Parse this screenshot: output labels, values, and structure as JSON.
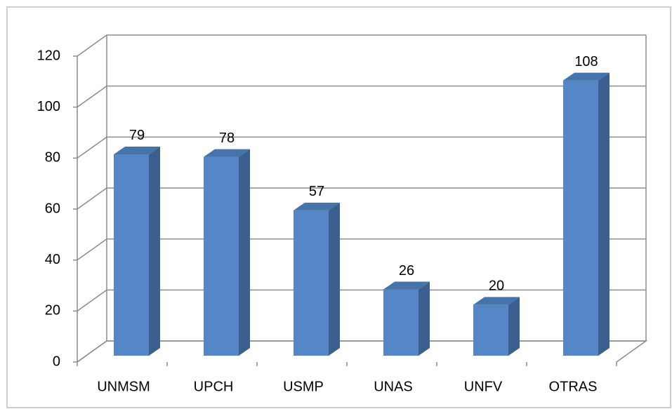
{
  "chart_data": {
    "type": "bar",
    "categories": [
      "UNMSM",
      "UPCH",
      "USMP",
      "UNAS",
      "UNFV",
      "OTRAS"
    ],
    "values": [
      79,
      78,
      57,
      26,
      20,
      108
    ],
    "color": "#5587c6",
    "ylim": [
      0,
      120
    ],
    "yticks": [
      0,
      20,
      40,
      60,
      80,
      100,
      120
    ],
    "grid": true
  }
}
